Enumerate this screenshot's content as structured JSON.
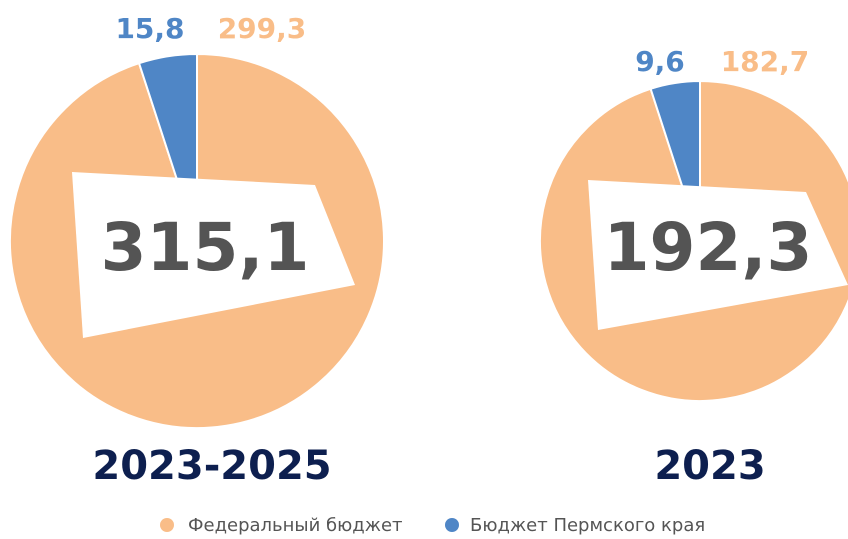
{
  "legend": [
    {
      "name": "Федеральный бюджет",
      "color": "#F9BD88"
    },
    {
      "name": "Бюджет Пермского края",
      "color": "#4F86C6"
    }
  ],
  "chart_data": [
    {
      "type": "pie",
      "title": "2023-2025",
      "center_text": "315,1",
      "values": [
        299.3,
        15.8
      ],
      "value_labels": [
        "299,3",
        "15,8"
      ]
    },
    {
      "type": "pie",
      "title": "2023",
      "center_text": "192,3",
      "values": [
        182.7,
        9.6
      ],
      "value_labels": [
        "182,7",
        "9,6"
      ]
    }
  ]
}
